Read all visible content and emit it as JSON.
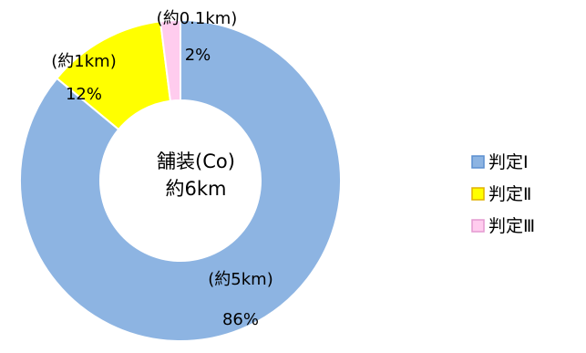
{
  "chart_data": {
    "type": "pie",
    "donut": true,
    "center_label": [
      "舗装(Co)",
      "約6km"
    ],
    "categories": [
      "判定Ⅰ",
      "判定Ⅱ",
      "判定Ⅲ"
    ],
    "values": [
      86,
      12,
      2
    ],
    "value_labels": [
      "86%",
      "12%",
      "2%"
    ],
    "distance_labels": [
      "(約5km)",
      "(約1km)",
      "(約0.1km)"
    ],
    "legend_labels": [
      "判定Ⅰ",
      "判定Ⅱ",
      "判定Ⅲ"
    ],
    "colors": [
      "#8db4e2",
      "#ffff00",
      "#ffccee"
    ],
    "legend_position": "right"
  }
}
